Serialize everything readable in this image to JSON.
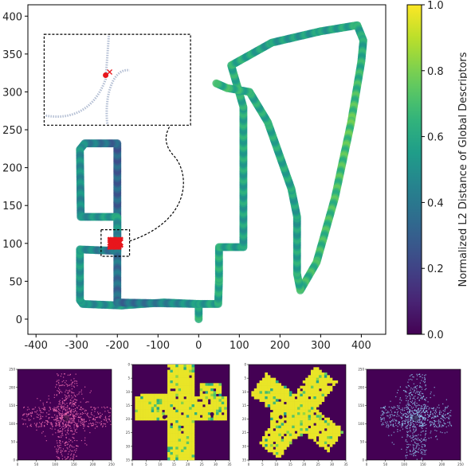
{
  "chart_data": {
    "type": "scatter",
    "title": "",
    "xlabel": "",
    "ylabel": "",
    "xlim": [
      -420,
      460
    ],
    "ylim": [
      -20,
      415
    ],
    "xticks": [
      -400,
      -300,
      -200,
      -100,
      0,
      100,
      200,
      300,
      400
    ],
    "yticks": [
      0,
      50,
      100,
      150,
      200,
      250,
      300,
      350,
      400
    ],
    "grid": false,
    "colormap": "viridis",
    "colorbar": {
      "label": "Normalized L2 Distance of Global Descriptors",
      "range": [
        0.0,
        1.0
      ],
      "ticks": [
        "0.0",
        "0.2",
        "0.4",
        "0.6",
        "0.8",
        "1.0"
      ]
    },
    "trajectory": [
      {
        "x": 0,
        "y": 0
      },
      {
        "x": 0,
        "y": 20
      },
      {
        "x": -85,
        "y": 22
      },
      {
        "x": -190,
        "y": 18
      },
      {
        "x": -285,
        "y": 20
      },
      {
        "x": -292,
        "y": 25
      },
      {
        "x": -292,
        "y": 92
      },
      {
        "x": -200,
        "y": 90
      },
      {
        "x": -200,
        "y": 128
      },
      {
        "x": -200,
        "y": 232
      },
      {
        "x": -280,
        "y": 232
      },
      {
        "x": -292,
        "y": 224
      },
      {
        "x": -290,
        "y": 135
      },
      {
        "x": -200,
        "y": 135
      },
      {
        "x": -200,
        "y": 90
      },
      {
        "x": -200,
        "y": 22
      },
      {
        "x": 0,
        "y": 20
      },
      {
        "x": 48,
        "y": 20
      },
      {
        "x": 50,
        "y": 52
      },
      {
        "x": 50,
        "y": 95
      },
      {
        "x": 110,
        "y": 95
      },
      {
        "x": 110,
        "y": 280
      },
      {
        "x": 80,
        "y": 335
      },
      {
        "x": 180,
        "y": 365
      },
      {
        "x": 300,
        "y": 380
      },
      {
        "x": 390,
        "y": 388
      },
      {
        "x": 405,
        "y": 368
      },
      {
        "x": 400,
        "y": 340
      },
      {
        "x": 375,
        "y": 260
      },
      {
        "x": 335,
        "y": 160
      },
      {
        "x": 290,
        "y": 75
      },
      {
        "x": 250,
        "y": 38
      },
      {
        "x": 242,
        "y": 60
      },
      {
        "x": 242,
        "y": 135
      },
      {
        "x": 228,
        "y": 172
      },
      {
        "x": 170,
        "y": 260
      },
      {
        "x": 125,
        "y": 300
      },
      {
        "x": 70,
        "y": 305
      },
      {
        "x": 40,
        "y": 312
      }
    ],
    "trajectory_colors": [
      0.62,
      0.55,
      0.5,
      0.52,
      0.48,
      0.5,
      0.53,
      0.36,
      0.32,
      0.3,
      0.45,
      0.5,
      0.48,
      0.56,
      0.38,
      0.34,
      0.52,
      0.58,
      0.6,
      0.6,
      0.55,
      0.6,
      0.62,
      0.55,
      0.55,
      0.6,
      0.58,
      0.62,
      0.72,
      0.68,
      0.66,
      0.65,
      0.6,
      0.55,
      0.58,
      0.6,
      0.6,
      0.65,
      0.62
    ],
    "query_marker": {
      "x": -205,
      "y": 100,
      "color": "#e8161c"
    },
    "zoom_box": {
      "x": [
        -240,
        -170
      ],
      "y": [
        83,
        118
      ]
    },
    "inset_box": {
      "x": [
        -380,
        -20
      ],
      "y": [
        256,
        376
      ]
    },
    "bottom_panels": [
      {
        "name": "point-cloud-left",
        "style": "pink"
      },
      {
        "name": "occupancy-left",
        "style": "yellow"
      },
      {
        "name": "occupancy-right",
        "style": "yellow"
      },
      {
        "name": "point-cloud-right",
        "style": "blue"
      }
    ],
    "panel_left_yticks": [
      "250",
      "200",
      "150",
      "100",
      "50",
      "0"
    ],
    "panel_left_xticks": [
      "0",
      "50",
      "100",
      "150",
      "200",
      "250"
    ],
    "panel_mid_xticks": [
      "0",
      "5",
      "10",
      "15",
      "20",
      "25",
      "30",
      "35"
    ],
    "panel_mid_yticks": [
      "0",
      "5",
      "10",
      "15",
      "20",
      "25",
      "30",
      "35"
    ]
  }
}
